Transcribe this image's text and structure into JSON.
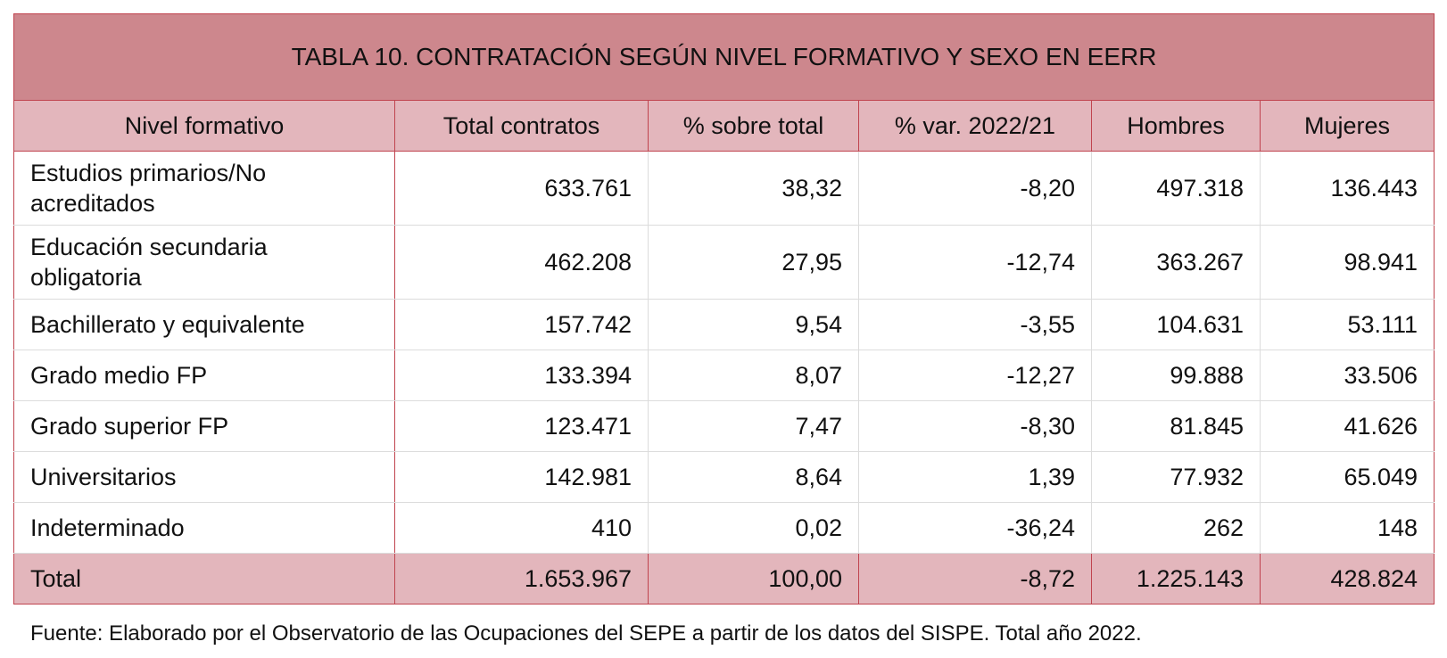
{
  "header": {
    "title": "TABLA 10. CONTRATACIÓN SEGÚN NIVEL FORMATIVO Y SEXO EN EERR"
  },
  "table": {
    "columns": [
      "Nivel formativo",
      "Total contratos",
      "% sobre total",
      "% var. 2022/21",
      "Hombres",
      "Mujeres"
    ],
    "rows": [
      [
        "Estudios primarios/No acreditados",
        "633.761",
        "38,32",
        "-8,20",
        "497.318",
        "136.443"
      ],
      [
        "Educación secundaria obligatoria",
        "462.208",
        "27,95",
        "-12,74",
        "363.267",
        "98.941"
      ],
      [
        "Bachillerato y equivalente",
        "157.742",
        "9,54",
        "-3,55",
        "104.631",
        "53.111"
      ],
      [
        "Grado medio FP",
        "133.394",
        "8,07",
        "-12,27",
        "99.888",
        "33.506"
      ],
      [
        "Grado superior FP",
        "123.471",
        "7,47",
        "-8,30",
        "81.845",
        "41.626"
      ],
      [
        "Universitarios",
        "142.981",
        "8,64",
        "1,39",
        "77.932",
        "65.049"
      ],
      [
        "Indeterminado",
        "410",
        "0,02",
        "-36,24",
        "262",
        "148"
      ]
    ],
    "total": [
      "Total",
      "1.653.967",
      "100,00",
      "-8,72",
      "1.225.143",
      "428.824"
    ]
  },
  "footer": {
    "source": "Fuente: Elaborado por el Observatorio de las Ocupaciones del SEPE a partir de los datos del SISPE. Total año 2022."
  }
}
